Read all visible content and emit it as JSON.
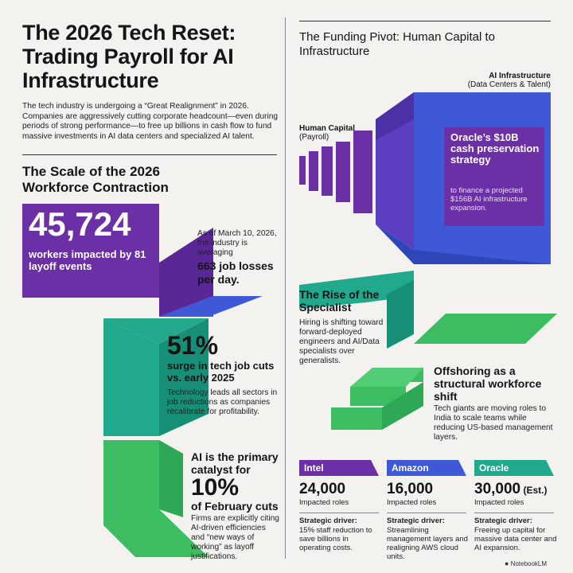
{
  "colors": {
    "purple": "#6b2fa6",
    "blue": "#3f59d6",
    "teal": "#20a98d",
    "green": "#3dbd62",
    "background": "#f3f2ef"
  },
  "header": {
    "title": "The 2026 Tech Reset: Trading Payroll for AI Infrastructure",
    "intro": "The tech industry is undergoing a “Great Realignment” in 2026. Companies are aggressively cutting corporate headcount—even during periods of strong performance—to free up billions in cash flow to fund massive investments in AI data centers and specialized AI talent."
  },
  "scale": {
    "heading": "The Scale of the 2026 Workforce Contraction",
    "workers": {
      "value": "45,724",
      "label": "workers impacted by 81 layoff events"
    },
    "daily": {
      "note": "As of March 10, 2026, the industry is averaging",
      "value": "663 job losses per day."
    },
    "surge": {
      "value": "51%",
      "label": "surge in tech job cuts vs. early 2025",
      "note": "Technology leads all sectors in job reductions as companies recalibrate for profitability."
    },
    "catalyst": {
      "lead": "AI is the primary catalyst for",
      "value": "10%",
      "tail": "of February cuts",
      "note": "Firms are explicitly citing AI-driven efficiencies and “new ways of working” as layoff justifications."
    }
  },
  "funding": {
    "heading": "The Funding Pivot: Human Capital to Infrastructure",
    "right_label": "AI Infrastructure",
    "right_sub": "(Data Centers & Talent)",
    "left_label": "Human Capital",
    "left_sub": "(Payroll)",
    "oracle_title": "Oracle’s $10B cash preservation strategy",
    "oracle_note": "to finance a projected $156B AI infrastructure expansion."
  },
  "specialist": {
    "heading": "The Rise of the Specialist",
    "note": "Hiring is shifting toward forward-deployed engineers and AI/Data specialists over generalists."
  },
  "offshoring": {
    "heading": "Offshoring as a structural workforce shift",
    "note": "Tech giants are moving roles to India to scale teams while reducing US-based management layers."
  },
  "companies": [
    {
      "name": "Intel",
      "value": "24,000",
      "suffix": "",
      "unit": "Impacted roles",
      "driver_label": "Strategic driver:",
      "driver": "15% staff reduction to save billions in operating costs."
    },
    {
      "name": "Amazon",
      "value": "16,000",
      "suffix": "",
      "unit": "Impacted roles",
      "driver_label": "Strategic driver:",
      "driver": "Streamlining management layers and realigning AWS cloud units."
    },
    {
      "name": "Oracle",
      "value": "30,000",
      "suffix": " (Est.)",
      "unit": "Impacted roles",
      "driver_label": "Strategic driver:",
      "driver": "Freeing up capital for massive data center and AI expansion."
    }
  ],
  "footer": {
    "brand": "NotebookLM"
  }
}
